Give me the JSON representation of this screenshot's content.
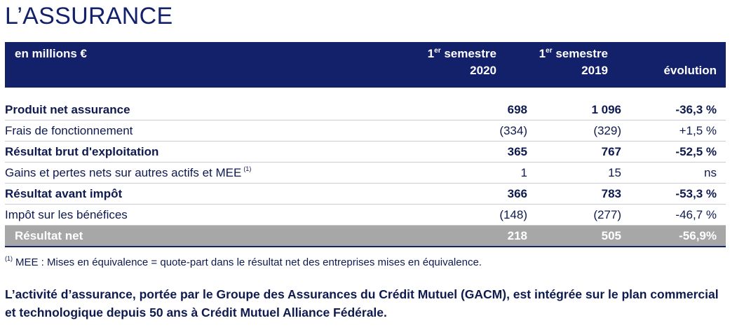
{
  "title": "L’ASSURANCE",
  "colors": {
    "header_bg": "#13206a",
    "text": "#0f1a4f",
    "total_bg": "#a7a7a7"
  },
  "table": {
    "unit_label": "en millions €",
    "col1": {
      "sup": "er",
      "prefix": "1",
      "line1": "semestre",
      "line2": "2020"
    },
    "col2": {
      "sup": "er",
      "prefix": "1",
      "line1": "semestre",
      "line2": "2019"
    },
    "col3": "évolution",
    "rows": [
      {
        "label": "Produit net assurance",
        "v2020": "698",
        "v2019": "1 096",
        "evol": "-36,3 %",
        "bold": true
      },
      {
        "label": "Frais de fonctionnement",
        "v2020": "(334)",
        "v2019": "(329)",
        "evol": "+1,5 %",
        "bold": false
      },
      {
        "label": "Résultat brut d'exploitation",
        "v2020": "365",
        "v2019": "767",
        "evol": "-52,5 %",
        "bold": true
      },
      {
        "label": "Gains et pertes nets sur autres actifs et MEE",
        "sup": "(1)",
        "v2020": "1",
        "v2019": "15",
        "evol": "ns",
        "bold": false
      },
      {
        "label": "Résultat avant impôt",
        "v2020": "366",
        "v2019": "783",
        "evol": "-53,3 %",
        "bold": true
      },
      {
        "label": "Impôt sur les bénéfices",
        "v2020": "(148)",
        "v2019": "(277)",
        "evol": "-46,7 %",
        "bold": false
      }
    ],
    "total": {
      "label": "Résultat net",
      "v2020": "218",
      "v2019": "505",
      "evol": "-56,9%"
    }
  },
  "footnote": {
    "mark": "(1)",
    "text": "MEE : Mises en équivalence = quote-part dans le résultat net des entreprises mises en équivalence."
  },
  "paragraph": "L’activité d’assurance, portée par le Groupe des Assurances du Crédit Mutuel (GACM), est intégrée sur le plan commercial et technologique depuis 50 ans à Crédit Mutuel Alliance Fédérale."
}
